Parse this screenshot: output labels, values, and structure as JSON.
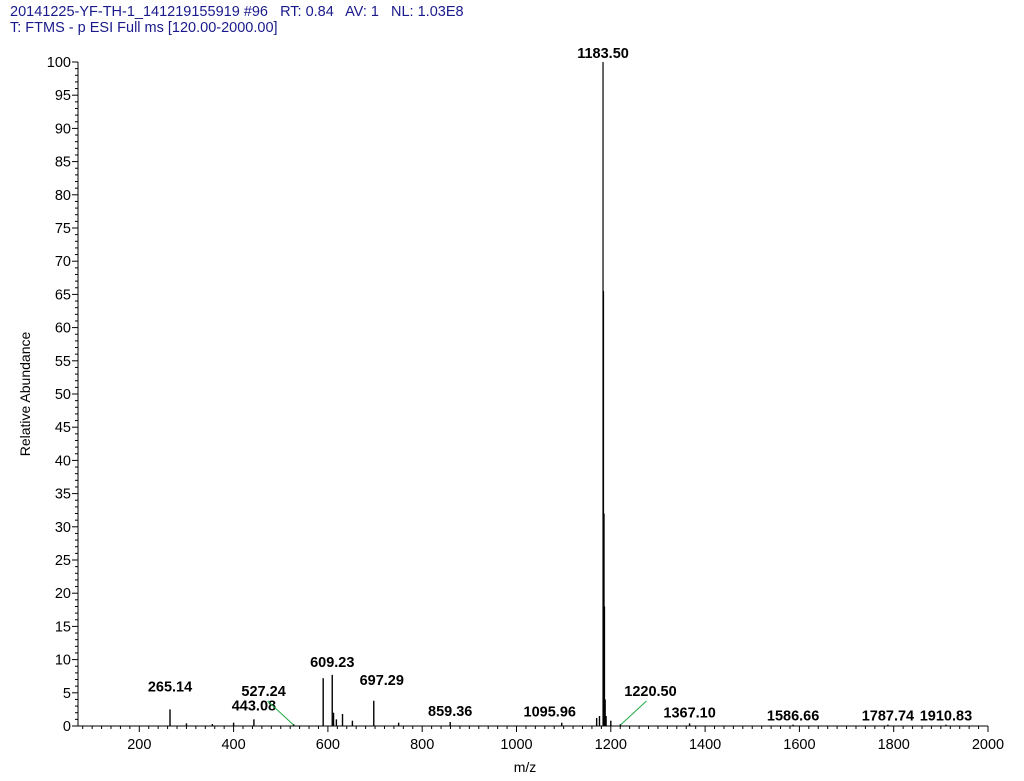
{
  "header": {
    "line1": "20141225-YF-TH-1_141219155919 #96   RT: 0.84   AV: 1   NL: 1.03E8",
    "line2": "T: FTMS - p ESI Full ms [120.00-2000.00]"
  },
  "chart_data": {
    "type": "line",
    "xlabel": "m/z",
    "ylabel": "Relative Abundance",
    "xlim": [
      70,
      2000
    ],
    "ylim": [
      0,
      100
    ],
    "x_ticks": [
      200,
      400,
      600,
      800,
      1000,
      1200,
      1400,
      1600,
      1800,
      2000
    ],
    "y_ticks": [
      0,
      5,
      10,
      15,
      20,
      25,
      30,
      35,
      40,
      45,
      50,
      55,
      60,
      65,
      70,
      75,
      80,
      85,
      90,
      95,
      100
    ],
    "peaks": [
      {
        "mz": 265.14,
        "abundance": 2.5
      },
      {
        "mz": 300.0,
        "abundance": 0.4
      },
      {
        "mz": 355.0,
        "abundance": 0.3
      },
      {
        "mz": 400.0,
        "abundance": 0.5
      },
      {
        "mz": 443.08,
        "abundance": 1.0
      },
      {
        "mz": 527.24,
        "abundance": 0.3
      },
      {
        "mz": 590.0,
        "abundance": 7.2
      },
      {
        "mz": 609.23,
        "abundance": 7.7
      },
      {
        "mz": 612.0,
        "abundance": 2.0
      },
      {
        "mz": 618.0,
        "abundance": 1.0
      },
      {
        "mz": 631.0,
        "abundance": 1.8
      },
      {
        "mz": 652.0,
        "abundance": 0.8
      },
      {
        "mz": 697.29,
        "abundance": 3.8
      },
      {
        "mz": 750.0,
        "abundance": 0.5
      },
      {
        "mz": 859.36,
        "abundance": 0.6
      },
      {
        "mz": 1095.96,
        "abundance": 0.5
      },
      {
        "mz": 1170.0,
        "abundance": 1.2
      },
      {
        "mz": 1176.0,
        "abundance": 1.5
      },
      {
        "mz": 1183.5,
        "abundance": 100
      },
      {
        "mz": 1184.5,
        "abundance": 65.5
      },
      {
        "mz": 1185.5,
        "abundance": 32
      },
      {
        "mz": 1186.5,
        "abundance": 18
      },
      {
        "mz": 1188.0,
        "abundance": 4
      },
      {
        "mz": 1190.0,
        "abundance": 1.5
      },
      {
        "mz": 1200.0,
        "abundance": 0.8
      },
      {
        "mz": 1220.5,
        "abundance": 0.3
      },
      {
        "mz": 1367.1,
        "abundance": 0.4
      },
      {
        "mz": 1586.66,
        "abundance": 0.2
      },
      {
        "mz": 1787.74,
        "abundance": 0.2
      },
      {
        "mz": 1910.83,
        "abundance": 0.2
      }
    ],
    "peak_labels": [
      {
        "text": "265.14",
        "mz": 265.14,
        "abundance": 2.5,
        "leader": false
      },
      {
        "text": "443.08",
        "mz": 443.08,
        "abundance": 1.0,
        "leader": false
      },
      {
        "text": "527.24",
        "mz": 527.24,
        "abundance": 0.3,
        "leader": true
      },
      {
        "text": "609.23",
        "mz": 609.23,
        "abundance": 7.7,
        "leader": false
      },
      {
        "text": "697.29",
        "mz": 697.29,
        "abundance": 3.8,
        "leader": false
      },
      {
        "text": "859.36",
        "mz": 859.36,
        "abundance": 0.6,
        "leader": false
      },
      {
        "text": "1095.96",
        "mz": 1095.96,
        "abundance": 0.5,
        "leader": false
      },
      {
        "text": "1183.50",
        "mz": 1183.5,
        "abundance": 100,
        "leader": false
      },
      {
        "text": "1220.50",
        "mz": 1220.5,
        "abundance": 0.3,
        "leader": true
      },
      {
        "text": "1367.10",
        "mz": 1367.1,
        "abundance": 0.4,
        "leader": false
      },
      {
        "text": "1586.66",
        "mz": 1586.66,
        "abundance": 0.2,
        "leader": false
      },
      {
        "text": "1787.74",
        "mz": 1787.74,
        "abundance": 0.2,
        "leader": false
      },
      {
        "text": "1910.83",
        "mz": 1910.83,
        "abundance": 0.2,
        "leader": false
      }
    ],
    "colors": {
      "peaks": "#000000",
      "leader": "#22aa44",
      "header": "#1a1a8c"
    }
  }
}
